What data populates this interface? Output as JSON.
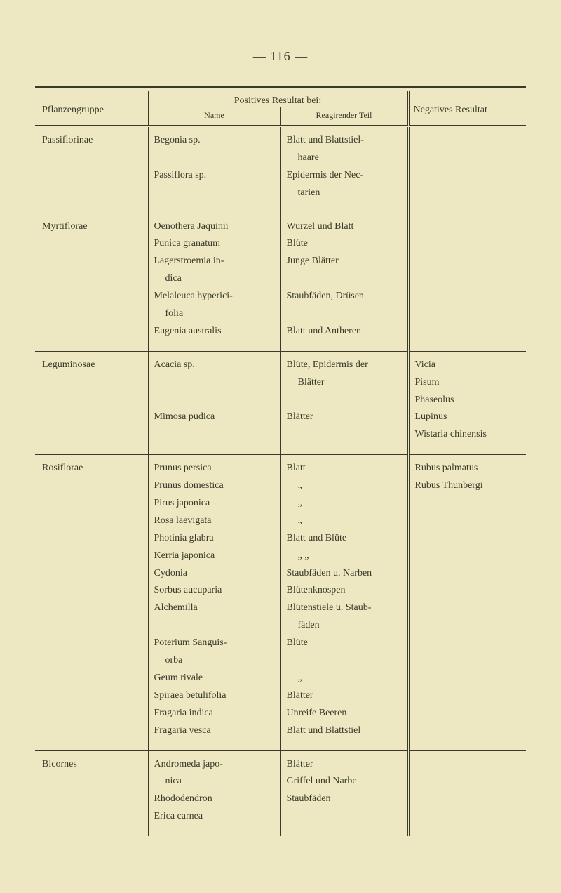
{
  "page": {
    "header_label": "—   116   —",
    "background_color": "#ede8c2",
    "text_color": "#3a3a2a"
  },
  "table": {
    "headers": {
      "group": "Pflanzengruppe",
      "positives": "Positives Resultat bei:",
      "name": "Name",
      "teil": "Reagirender Teil",
      "negatives": "Negatives Resultat"
    },
    "sections": [
      {
        "group": "Passiflorinae",
        "name_lines": [
          {
            "t": "Begonia sp."
          },
          {
            "t": "",
            "blank": true
          },
          {
            "t": "Passiflora sp."
          }
        ],
        "teil_lines": [
          {
            "t": "Blatt und Blattstiel-"
          },
          {
            "t": "haare",
            "indent": true
          },
          {
            "t": "Epidermis der Nec-"
          },
          {
            "t": "tarien",
            "indent": true
          }
        ],
        "neg_lines": []
      },
      {
        "group": "Myrtiflorae",
        "name_lines": [
          {
            "t": "Oenothera Jaquinii"
          },
          {
            "t": "Punica granatum"
          },
          {
            "t": "Lagerstroemia in-"
          },
          {
            "t": "dica",
            "indent": true
          },
          {
            "t": "Melaleuca hyperici-"
          },
          {
            "t": "folia",
            "indent": true
          },
          {
            "t": "Eugenia australis"
          }
        ],
        "teil_lines": [
          {
            "t": "Wurzel und Blatt"
          },
          {
            "t": "Blüte"
          },
          {
            "t": "Junge Blätter"
          },
          {
            "t": "",
            "blank": true
          },
          {
            "t": "Staubfäden, Drüsen"
          },
          {
            "t": "",
            "blank": true
          },
          {
            "t": "Blatt und Antheren"
          }
        ],
        "neg_lines": []
      },
      {
        "group": "Leguminosae",
        "name_lines": [
          {
            "t": "Acacia sp."
          },
          {
            "t": "",
            "blank": true
          },
          {
            "t": "",
            "blank": true
          },
          {
            "t": "Mimosa pudica"
          }
        ],
        "teil_lines": [
          {
            "t": "Blüte, Epidermis der"
          },
          {
            "t": "Blätter",
            "indent": true
          },
          {
            "t": "",
            "blank": true
          },
          {
            "t": "Blätter"
          }
        ],
        "neg_lines": [
          {
            "t": "Vicia"
          },
          {
            "t": "Pisum"
          },
          {
            "t": "Phaseolus"
          },
          {
            "t": "Lupinus"
          },
          {
            "t": "Wistaria chinensis"
          }
        ]
      },
      {
        "group": "Rosiflorae",
        "name_lines": [
          {
            "t": "Prunus persica"
          },
          {
            "t": "Prunus domestica"
          },
          {
            "t": "Pirus japonica"
          },
          {
            "t": "Rosa laevigata"
          },
          {
            "t": "Photinia glabra"
          },
          {
            "t": "Kerria japonica"
          },
          {
            "t": "Cydonia"
          },
          {
            "t": "Sorbus aucuparia"
          },
          {
            "t": "Alchemilla"
          },
          {
            "t": "",
            "blank": true
          },
          {
            "t": "Poterium Sanguis-"
          },
          {
            "t": "orba",
            "indent": true
          },
          {
            "t": "Geum rivale"
          },
          {
            "t": "Spiraea betulifolia"
          },
          {
            "t": "Fragaria indica"
          },
          {
            "t": "Fragaria vesca"
          }
        ],
        "teil_lines": [
          {
            "t": "Blatt"
          },
          {
            "t": "„",
            "indent": true
          },
          {
            "t": "„",
            "indent": true
          },
          {
            "t": "„",
            "indent": true
          },
          {
            "t": "Blatt und Blüte"
          },
          {
            "t": "„           „",
            "indent": true
          },
          {
            "t": "Staubfäden u. Narben"
          },
          {
            "t": "Blütenknospen"
          },
          {
            "t": "Blütenstiele u. Staub-"
          },
          {
            "t": "fäden",
            "indent": true
          },
          {
            "t": "Blüte"
          },
          {
            "t": "",
            "blank": true
          },
          {
            "t": "„",
            "indent": true
          },
          {
            "t": "Blätter"
          },
          {
            "t": "Unreife Beeren"
          },
          {
            "t": "Blatt und Blattstiel"
          }
        ],
        "neg_lines": [
          {
            "t": "Rubus palmatus"
          },
          {
            "t": "Rubus Thunbergi"
          }
        ]
      },
      {
        "group": "Bicornes",
        "name_lines": [
          {
            "t": "Andromeda japo-"
          },
          {
            "t": "nica",
            "indent": true
          },
          {
            "t": "Rhododendron"
          },
          {
            "t": "Erica carnea"
          }
        ],
        "teil_lines": [
          {
            "t": "Blätter"
          },
          {
            "t": "Griffel und Narbe"
          },
          {
            "t": "Staubfäden"
          }
        ],
        "neg_lines": []
      }
    ]
  }
}
